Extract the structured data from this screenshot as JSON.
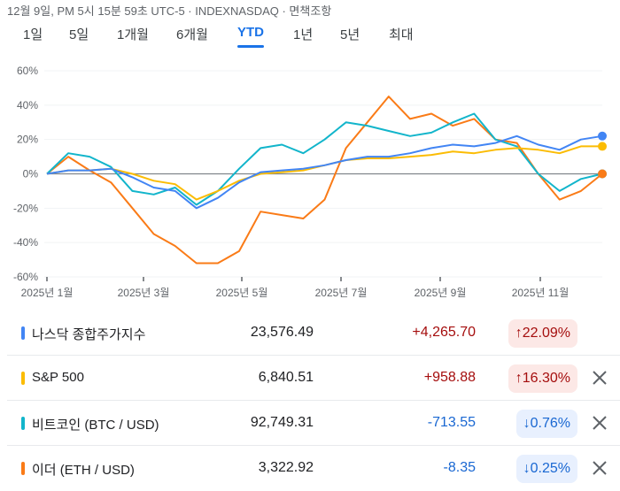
{
  "header": {
    "meta": "12월 9일, PM 5시 15분 59초 UTC-5 · INDEXNASDAQ · 면책조항"
  },
  "tabs": [
    {
      "label": "1일",
      "active": false
    },
    {
      "label": "5일",
      "active": false
    },
    {
      "label": "1개월",
      "active": false
    },
    {
      "label": "6개월",
      "active": false
    },
    {
      "label": "YTD",
      "active": true
    },
    {
      "label": "1년",
      "active": false
    },
    {
      "label": "5년",
      "active": false
    },
    {
      "label": "최대",
      "active": false
    }
  ],
  "chart_data": {
    "type": "line",
    "title": "",
    "xlabel": "",
    "ylabel": "",
    "ylim": [
      -60,
      60
    ],
    "y_ticks": [
      "60%",
      "40%",
      "20%",
      "0%",
      "-20%",
      "-40%",
      "-60%"
    ],
    "x_ticks": [
      "2025년 1월",
      "2025년 3월",
      "2025년 5월",
      "2025년 7월",
      "2025년 9월",
      "2025년 11월"
    ],
    "grid": true,
    "baseline": 0,
    "x": [
      "Jan 1",
      "Jan 15",
      "Feb 1",
      "Feb 15",
      "Mar 1",
      "Mar 15",
      "Apr 1",
      "Apr 8",
      "Apr 15",
      "May 1",
      "May 15",
      "Jun 1",
      "Jun 15",
      "Jul 1",
      "Jul 15",
      "Aug 1",
      "Aug 15",
      "Sep 1",
      "Sep 15",
      "Oct 1",
      "Oct 8",
      "Oct 15",
      "Nov 1",
      "Nov 15",
      "Nov 22",
      "Dec 1",
      "Dec 9"
    ],
    "series": [
      {
        "name": "나스닥 종합주가지수",
        "color": "#4285f4",
        "values": [
          0,
          2,
          2,
          3,
          -2,
          -8,
          -10,
          -20,
          -14,
          -5,
          1,
          2,
          3,
          5,
          8,
          10,
          10,
          12,
          15,
          17,
          16,
          18,
          22,
          17,
          14,
          20,
          22
        ]
      },
      {
        "name": "S&P 500",
        "color": "#fbbc04",
        "values": [
          0,
          2,
          2,
          3,
          0,
          -4,
          -6,
          -15,
          -10,
          -4,
          0,
          1,
          2,
          5,
          8,
          9,
          9,
          10,
          11,
          13,
          12,
          14,
          15,
          14,
          12,
          16,
          16
        ]
      },
      {
        "name": "비트코인 (BTC / USD)",
        "color": "#12b5cb",
        "values": [
          0,
          12,
          10,
          4,
          -10,
          -12,
          -8,
          -18,
          -10,
          3,
          15,
          17,
          12,
          20,
          30,
          28,
          25,
          22,
          24,
          30,
          35,
          20,
          16,
          0,
          -10,
          -3,
          0
        ]
      },
      {
        "name": "이더 (ETH / USD)",
        "color": "#fa7b17",
        "values": [
          0,
          10,
          2,
          -5,
          -20,
          -35,
          -42,
          -52,
          -52,
          -45,
          -22,
          -24,
          -26,
          -15,
          15,
          30,
          45,
          32,
          35,
          28,
          32,
          20,
          18,
          0,
          -15,
          -10,
          0
        ]
      }
    ]
  },
  "table": {
    "rows": [
      {
        "name": "나스닥 종합주가지수",
        "color": "#4285f4",
        "price": "23,576.49",
        "change": "+4,265.70",
        "percent": "↑22.09%",
        "direction": "up",
        "removable": false
      },
      {
        "name": "S&P 500",
        "color": "#fbbc04",
        "price": "6,840.51",
        "change": "+958.88",
        "percent": "↑16.30%",
        "direction": "up",
        "removable": true
      },
      {
        "name": "비트코인 (BTC / USD)",
        "color": "#12b5cb",
        "price": "92,749.31",
        "change": "-713.55",
        "percent": "↓0.76%",
        "direction": "down",
        "removable": true
      },
      {
        "name": "이더 (ETH / USD)",
        "color": "#fa7b17",
        "price": "3,322.92",
        "change": "-8.35",
        "percent": "↓0.25%",
        "direction": "down",
        "removable": true
      }
    ]
  }
}
